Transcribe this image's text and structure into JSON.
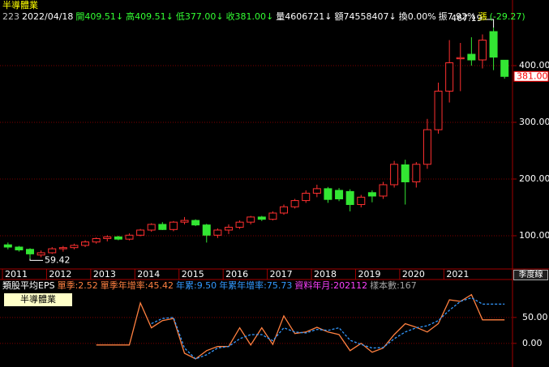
{
  "header": {
    "title": "半導體業",
    "code": "223",
    "date": "2022/04/18",
    "fields": [
      {
        "text": "開409.51↓",
        "color": "#33ff33"
      },
      {
        "text": "高409.51↓",
        "color": "#33ff33"
      },
      {
        "text": "低377.00↓",
        "color": "#33ff33"
      },
      {
        "text": "收381.00↓",
        "color": "#33ff33"
      },
      {
        "text": "量4606721↓",
        "color": "#ffffff"
      },
      {
        "text": "額74558407↓",
        "color": "#ffffff"
      },
      {
        "text": "換0.00%",
        "color": "#ffffff"
      },
      {
        "text": "振7.92%",
        "color": "#ffffff"
      },
      {
        "text": "漲",
        "color": "#ffff00"
      },
      {
        "text": "(-29.27)",
        "color": "#33ff33"
      }
    ]
  },
  "period_button": "季度線",
  "chart_data": [
    {
      "type": "candlestick",
      "categories": [
        "2011",
        null,
        null,
        null,
        "2012",
        null,
        null,
        null,
        "2013",
        null,
        null,
        null,
        "2014",
        null,
        null,
        null,
        "2015",
        null,
        null,
        null,
        "2016",
        null,
        null,
        null,
        "2017",
        null,
        null,
        null,
        "2018",
        null,
        null,
        null,
        "2019",
        null,
        null,
        null,
        "2020",
        null,
        null,
        null,
        "2021",
        null,
        null,
        null,
        null,
        null
      ],
      "open": [
        84,
        80,
        76,
        66,
        70,
        77,
        79,
        83,
        89,
        95,
        98,
        94,
        101,
        110,
        120,
        111,
        124,
        127,
        119,
        101,
        110,
        115,
        124,
        133,
        129,
        140,
        151,
        162,
        175,
        183,
        180,
        178,
        155,
        176,
        170,
        190,
        225,
        195,
        226,
        287,
        355,
        412,
        420,
        410,
        460,
        409.51
      ],
      "high": [
        88,
        82,
        78,
        74,
        80,
        82,
        86,
        92,
        97,
        101,
        100,
        104,
        112,
        122,
        124,
        126,
        133,
        129,
        121,
        113,
        120,
        127,
        135,
        135,
        143,
        155,
        165,
        180,
        190,
        186,
        184,
        182,
        172,
        180,
        195,
        232,
        234,
        230,
        306,
        370,
        445,
        440,
        450,
        455,
        467.19,
        409.51
      ],
      "low": [
        76,
        72,
        59.42,
        62,
        68,
        72,
        76,
        80,
        86,
        90,
        92,
        92,
        99,
        107,
        110,
        108,
        120,
        117,
        88,
        96,
        103,
        112,
        120,
        126,
        127,
        137,
        148,
        158,
        168,
        158,
        161,
        143,
        150,
        159,
        165,
        185,
        155,
        185,
        218,
        280,
        335,
        355,
        400,
        395,
        392,
        377
      ],
      "close": [
        80,
        75,
        68,
        70,
        77,
        79,
        83,
        89,
        95,
        98,
        94,
        101,
        110,
        120,
        111,
        124,
        127,
        119,
        101,
        110,
        115,
        124,
        133,
        129,
        140,
        151,
        162,
        175,
        183,
        164,
        165,
        155,
        168,
        170,
        190,
        226,
        195,
        226,
        287,
        355,
        405,
        414,
        410,
        445,
        415,
        381
      ],
      "up_color": "#ff3030",
      "down_color": "#33e633",
      "ylim": [
        41.4,
        475.7
      ],
      "yticks": [
        {
          "value": 100,
          "label": "100.00"
        },
        {
          "value": 200,
          "label": "200.00"
        },
        {
          "value": 300,
          "label": "300.00"
        },
        {
          "value": 400,
          "label": "400.00"
        }
      ],
      "grid": true,
      "annotations": [
        467.19,
        59.42
      ],
      "last_price": {
        "value": 381,
        "label": "381.00"
      }
    },
    {
      "type": "line",
      "title": "類股平均EPS",
      "label": "半導體業",
      "stats": [
        {
          "text": "單季:2.52",
          "color": "#ff8040"
        },
        {
          "text": "單季年增率:45.42",
          "color": "#ff8040"
        },
        {
          "text": "年累:9.50",
          "color": "#3399ff"
        },
        {
          "text": "年累年增率:75.73",
          "color": "#3399ff"
        },
        {
          "text": "資料年月:202112",
          "color": "#ff40ff"
        },
        {
          "text": "樣本數:167",
          "color": "#a0a0a0"
        }
      ],
      "series": [
        {
          "color": "#ff8040",
          "dashed": false,
          "values": [
            null,
            null,
            null,
            null,
            null,
            null,
            null,
            null,
            -3,
            -3,
            -3,
            -3,
            78,
            30,
            44,
            48,
            -19,
            -30,
            -14,
            -6,
            -6,
            30,
            -3,
            30,
            -2,
            53,
            19,
            22,
            31,
            22,
            17,
            -14,
            0,
            -17,
            -9,
            17,
            38,
            31,
            22,
            38,
            84,
            81,
            94,
            45.42,
            45.42,
            45.42
          ]
        },
        {
          "color": "#3399ff",
          "dashed": true,
          "values": [
            null,
            null,
            null,
            null,
            null,
            null,
            null,
            null,
            null,
            null,
            null,
            null,
            null,
            38,
            48,
            50,
            -9,
            -30,
            -22,
            -9,
            -6,
            9,
            17,
            17,
            5,
            30,
            22,
            20,
            27,
            25,
            30,
            6,
            -2,
            -9,
            -8,
            9,
            22,
            30,
            34,
            44,
            64,
            81,
            88,
            75.73,
            75.73,
            75.73
          ]
        }
      ],
      "ylim": [
        -44,
        96.6
      ],
      "yticks": [
        {
          "value": 0,
          "label": "0.00"
        },
        {
          "value": 50,
          "label": "50.00"
        }
      ],
      "grid": true
    }
  ]
}
